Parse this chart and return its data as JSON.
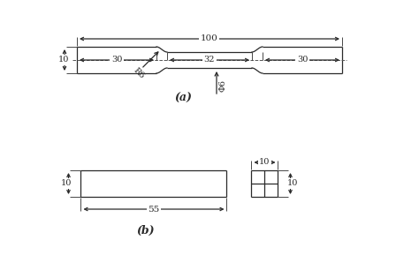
{
  "bg_color": "#ffffff",
  "line_color": "#2a2a2a",
  "fig_width": 4.74,
  "fig_height": 2.98,
  "dpi": 100,
  "part_a": {
    "label": "(a)",
    "dim_100": "100",
    "dim_30L": "30",
    "dim_32": "32",
    "dim_30R": "30",
    "dim_10": "10",
    "dim_phi6": "Φ6",
    "dim_R6": "R6"
  },
  "part_b": {
    "label": "(b)",
    "dim_55": "55",
    "dim_10h": "10",
    "dim_10w": "10",
    "dim_10sq": "10"
  }
}
